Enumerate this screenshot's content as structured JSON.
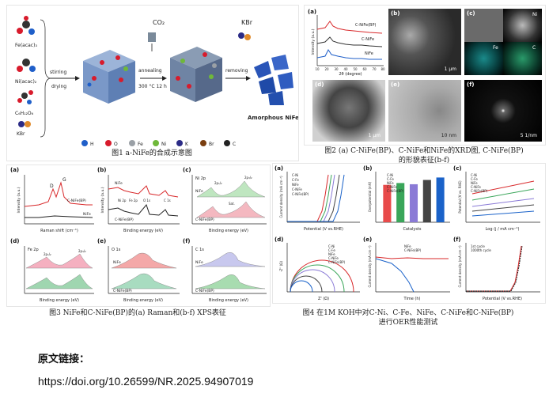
{
  "fig1": {
    "caption": "图1 a-NiFe的合成示意图",
    "reagents": [
      "Fe(acac)₃",
      "Ni(acac)₂",
      "C₆H₁₂O₆",
      "KBr"
    ],
    "step1": [
      "stirring",
      "drying"
    ],
    "step2": [
      "annealing",
      "300 °C 12 h"
    ],
    "gas": "CO₂",
    "step3": "removing",
    "kbr": "KBr",
    "product": "Amorphous NiFe",
    "legend": [
      "H",
      "O",
      "Fe",
      "Ni",
      "K",
      "Br",
      "C"
    ],
    "legend_colors": [
      "#1f5fc9",
      "#d81b2c",
      "#9aa0a6",
      "#6fb83a",
      "#2b2b86",
      "#7a3e10",
      "#222222"
    ]
  },
  "fig2": {
    "caption_l1": "图2 (a) C-NiFe(BP)、C-NiFe和NiFe的XRD图, C-NiFe(BP)",
    "caption_l2": "的形貌表征(b-f)",
    "xrd": {
      "ylabel": "Intensity (a.u.)",
      "xlabel": "2θ (degree)",
      "series": [
        "C-NiFe(BP)",
        "C-NiFe",
        "NiFe"
      ],
      "ticks": [
        "10",
        "20",
        "30",
        "40",
        "50",
        "60",
        "70",
        "80"
      ]
    },
    "b_scale": "1 μm",
    "c_labels": [
      "Ni",
      "Fe",
      "C"
    ],
    "d_scale": "1 μm",
    "e_scale": "10 nm",
    "f_scale": "5 1/nm",
    "panels": [
      "(a)",
      "(b)",
      "(c)",
      "(d)",
      "(e)",
      "(f)"
    ]
  },
  "fig3": {
    "caption": "图3 NiFe和C-NiFe(BP)的(a) Raman和(b-f) XPS表征",
    "a": {
      "xlabel": "Raman shift (cm⁻¹)",
      "ylabel": "Intensity (a.u.)",
      "peaks": [
        "D",
        "G"
      ],
      "series": [
        "C-NiFe(BP)",
        "NiFe"
      ]
    },
    "b": {
      "xlabel": "Binding energy (eV)",
      "ylabel": "Intensity (a.u.)",
      "series": [
        "NiFe",
        "C-NiFe(BP)"
      ],
      "peaks": [
        "Ni 2p",
        "Fe 2p",
        "O 1s",
        "C 1s"
      ]
    },
    "c": {
      "xlabel": "Binding energy (eV)",
      "title": "Ni 2p",
      "labels": [
        "2p₁/₂",
        "2p₃/₂",
        "Sat."
      ],
      "series": [
        "NiFe",
        "C-NiFe(BP)"
      ]
    },
    "d": {
      "xlabel": "Binding energy (eV)",
      "title": "Fe 2p",
      "labels": [
        "2p₁/₂",
        "2p₃/₂"
      ]
    },
    "e": {
      "xlabel": "Binding energy (eV)",
      "title": "O 1s",
      "series": [
        "NiFe",
        "C-NiFe(BP)"
      ]
    },
    "f": {
      "xlabel": "Binding energy (eV)",
      "title": "C 1s",
      "series": [
        "NiFe",
        "C-NiFe(BP)"
      ]
    },
    "panels": [
      "(a)",
      "(b)",
      "(c)",
      "(d)",
      "(e)",
      "(f)"
    ]
  },
  "fig4": {
    "caption_l1": "图4 在1M KOH中对C-Ni、C-Fe、NiFe、C-NiFe和C-NiFe(BP)",
    "caption_l2": "进行OER性能测试",
    "a": {
      "xlabel": "Potential (V vs.RHE)",
      "ylabel": "Current density (mA cm⁻²)",
      "series": [
        "C-Ni",
        "C-Fe",
        "NiFe",
        "C-NiFe",
        "C-NiFe(BP)"
      ]
    },
    "b": {
      "xlabel": "Catalysts",
      "ylabel": "Overpotential (mV)",
      "series": [
        "C-Ni",
        "C-Fe",
        "NiFe",
        "C-NiFe",
        "C-NiFe(BP)"
      ]
    },
    "c": {
      "xlabel": "Log (j / mA cm⁻²)",
      "ylabel": "Potential (V vs. RHE)",
      "series": [
        "C-Ni",
        "C-Fe",
        "NiFe",
        "C-NiFe",
        "C-NiFe(BP)"
      ]
    },
    "d": {
      "xlabel": "Z' (Ω)",
      "ylabel": "-Z'' (Ω)",
      "series": [
        "C-Ni",
        "C-Fe",
        "NiFe",
        "C-NiFe",
        "C-NiFe(BP)"
      ]
    },
    "e": {
      "xlabel": "Time (h)",
      "ylabel": "Current density (mA cm⁻²)",
      "series": [
        "NiFe",
        "C-NiFe(BP)"
      ]
    },
    "f": {
      "xlabel": "Potential (V vs.RHE)",
      "ylabel": "Current density (mA cm⁻²)",
      "series": [
        "1st cycle",
        "1000th cycle"
      ]
    },
    "panels": [
      "(a)",
      "(b)",
      "(c)",
      "(d)",
      "(e)",
      "(f)"
    ]
  },
  "footer": {
    "title": "原文链接：",
    "link": "https://doi.org/10.26599/NR.2025.94907019"
  },
  "chart_data": [
    {
      "type": "bar",
      "title": "",
      "xlabel": "Catalysts",
      "ylabel": "Overpotential (mV)",
      "categories": [
        "C-Ni",
        "C-Fe",
        "NiFe",
        "C-NiFe",
        "C-NiFe(BP)"
      ],
      "values": [
        305,
        320,
        310,
        345,
        365
      ],
      "colors": [
        "#e84a4a",
        "#3aa65a",
        "#8a7ad6",
        "#444444",
        "#1a62c9"
      ]
    }
  ]
}
